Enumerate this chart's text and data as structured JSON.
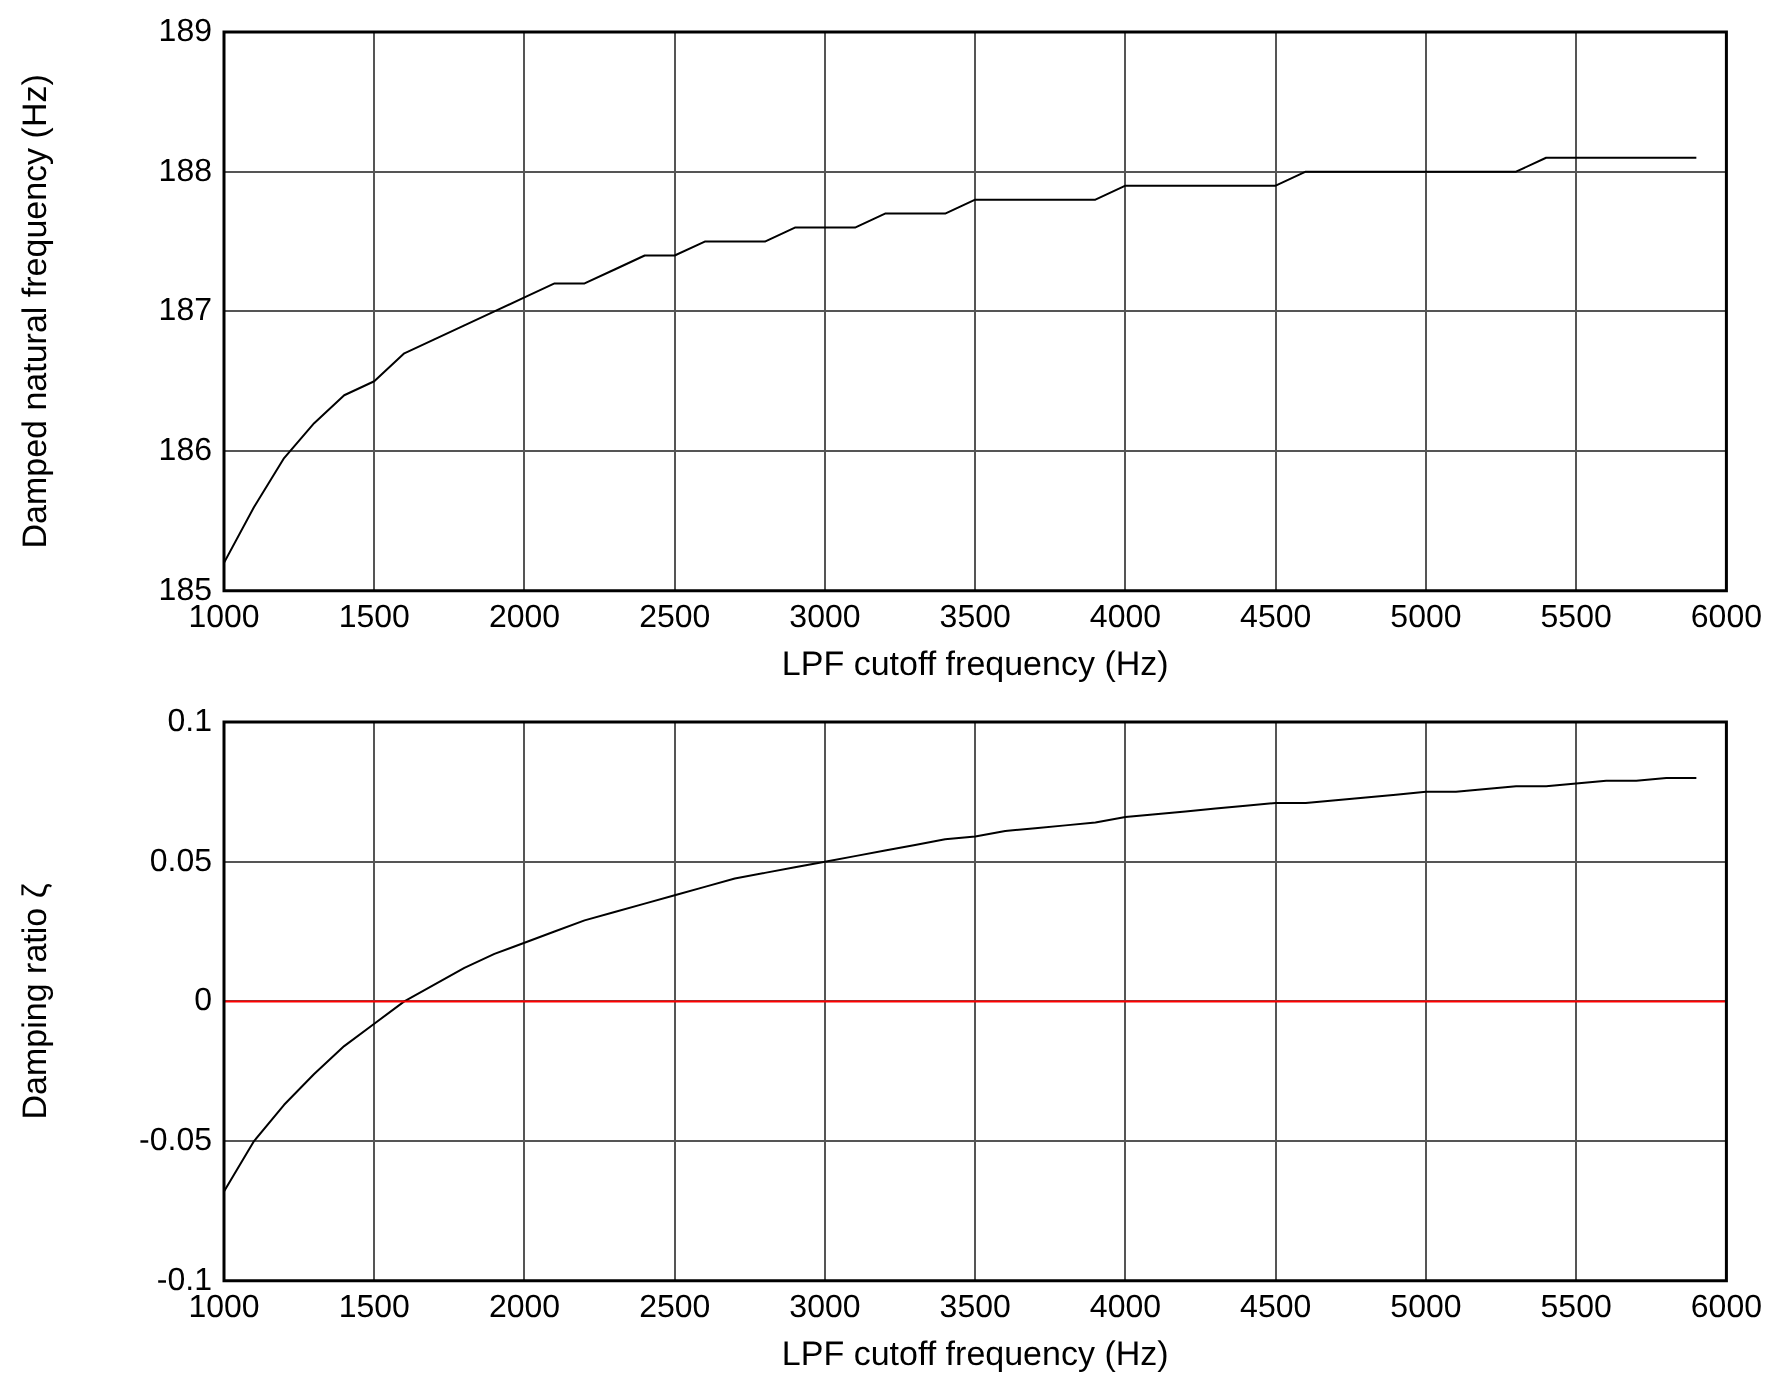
{
  "chart_data": [
    {
      "type": "line",
      "xlabel": "LPF cutoff frequency (Hz)",
      "ylabel": "Damped natural frequency (Hz)",
      "xlim": [
        1000,
        6000
      ],
      "xticks": [
        1000,
        1500,
        2000,
        2500,
        3000,
        3500,
        4000,
        4500,
        5000,
        5500,
        6000
      ],
      "ylim": [
        185,
        189
      ],
      "yticks": [
        185,
        186,
        187,
        188,
        189
      ],
      "grid": true,
      "line_style": "solid",
      "marker": "none",
      "x": [
        1000,
        1100,
        1200,
        1300,
        1400,
        1500,
        1600,
        1700,
        1800,
        1900,
        2000,
        2100,
        2200,
        2300,
        2400,
        2500,
        2600,
        2700,
        2800,
        2900,
        3000,
        3100,
        3200,
        3300,
        3400,
        3500,
        3600,
        3700,
        3800,
        3900,
        4000,
        4100,
        4200,
        4300,
        4400,
        4500,
        4600,
        4700,
        4800,
        4900,
        5000,
        5100,
        5200,
        5300,
        5400,
        5500,
        5600,
        5700,
        5800,
        5900
      ],
      "series": [
        {
          "color": "#000000",
          "values": [
            185.2,
            185.6,
            185.95,
            186.2,
            186.4,
            186.5,
            186.7,
            186.8,
            186.9,
            187.0,
            187.1,
            187.2,
            187.2,
            187.3,
            187.4,
            187.4,
            187.5,
            187.5,
            187.5,
            187.6,
            187.6,
            187.6,
            187.7,
            187.7,
            187.7,
            187.8,
            187.8,
            187.8,
            187.8,
            187.8,
            187.9,
            187.9,
            187.9,
            187.9,
            187.9,
            187.9,
            188.0,
            188.0,
            188.0,
            188.0,
            188.0,
            188.0,
            188.0,
            188.0,
            188.1,
            188.1,
            188.1,
            188.1,
            188.1,
            188.1
          ]
        }
      ]
    },
    {
      "type": "line",
      "xlabel": "LPF cutoff frequency (Hz)",
      "ylabel": "Damping ratio ζ",
      "xlim": [
        1000,
        6000
      ],
      "xticks": [
        1000,
        1500,
        2000,
        2500,
        3000,
        3500,
        4000,
        4500,
        5000,
        5500,
        6000
      ],
      "ylim": [
        -0.1,
        0.1
      ],
      "yticks": [
        -0.1,
        -0.05,
        0,
        0.05,
        0.1
      ],
      "grid": true,
      "line_style": "solid",
      "marker": "none",
      "x": [
        1000,
        1100,
        1200,
        1300,
        1400,
        1500,
        1600,
        1700,
        1800,
        1900,
        2000,
        2100,
        2200,
        2300,
        2400,
        2500,
        2600,
        2700,
        2800,
        2900,
        3000,
        3100,
        3200,
        3300,
        3400,
        3500,
        3600,
        3700,
        3800,
        3900,
        4000,
        4100,
        4200,
        4300,
        4400,
        4500,
        4600,
        4700,
        4800,
        4900,
        5000,
        5100,
        5200,
        5300,
        5400,
        5500,
        5600,
        5700,
        5800,
        5900
      ],
      "series": [
        {
          "color": "#000000",
          "values": [
            -0.068,
            -0.05,
            -0.037,
            -0.026,
            -0.016,
            -0.008,
            0.0,
            0.006,
            0.012,
            0.017,
            0.021,
            0.025,
            0.029,
            0.032,
            0.035,
            0.038,
            0.041,
            0.044,
            0.046,
            0.048,
            0.05,
            0.052,
            0.054,
            0.056,
            0.058,
            0.059,
            0.061,
            0.062,
            0.063,
            0.064,
            0.066,
            0.067,
            0.068,
            0.069,
            0.07,
            0.071,
            0.071,
            0.072,
            0.073,
            0.074,
            0.075,
            0.075,
            0.076,
            0.077,
            0.077,
            0.078,
            0.079,
            0.079,
            0.08,
            0.08
          ]
        }
      ],
      "ref_lines": [
        {
          "axis": "y",
          "value": 0,
          "color": "#ff0000"
        }
      ]
    }
  ]
}
